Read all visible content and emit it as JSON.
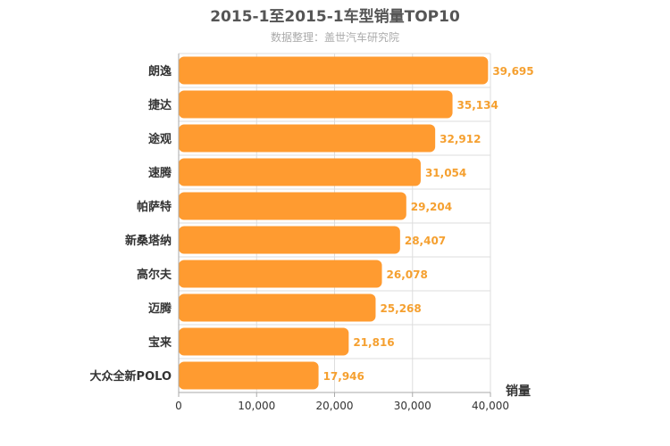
{
  "chart_data": {
    "type": "bar",
    "orientation": "horizontal",
    "title": "2015-1至2015-1车型销量TOP10",
    "subtitle": "数据整理：盖世汽车研究院",
    "categories": [
      "朗逸",
      "捷达",
      "途观",
      "速腾",
      "帕萨特",
      "新桑塔纳",
      "高尔夫",
      "迈腾",
      "宝来",
      "大众全新POLO"
    ],
    "values": [
      39695,
      35134,
      32912,
      31054,
      29204,
      28407,
      26078,
      25268,
      21816,
      17946
    ],
    "value_labels": [
      "39,695",
      "35,134",
      "32,912",
      "31,054",
      "29,204",
      "28,407",
      "26,078",
      "25,268",
      "21,816",
      "17,946"
    ],
    "xlabel": "销量",
    "ylabel": "",
    "xlim": [
      0,
      40000
    ],
    "xticks": [
      0,
      10000,
      20000,
      30000,
      40000
    ],
    "xtick_labels": [
      "0",
      "10,000",
      "20,000",
      "30,000",
      "40,000"
    ],
    "bar_color": "#ff9b30",
    "label_color": "#f5a030",
    "grid": true
  }
}
